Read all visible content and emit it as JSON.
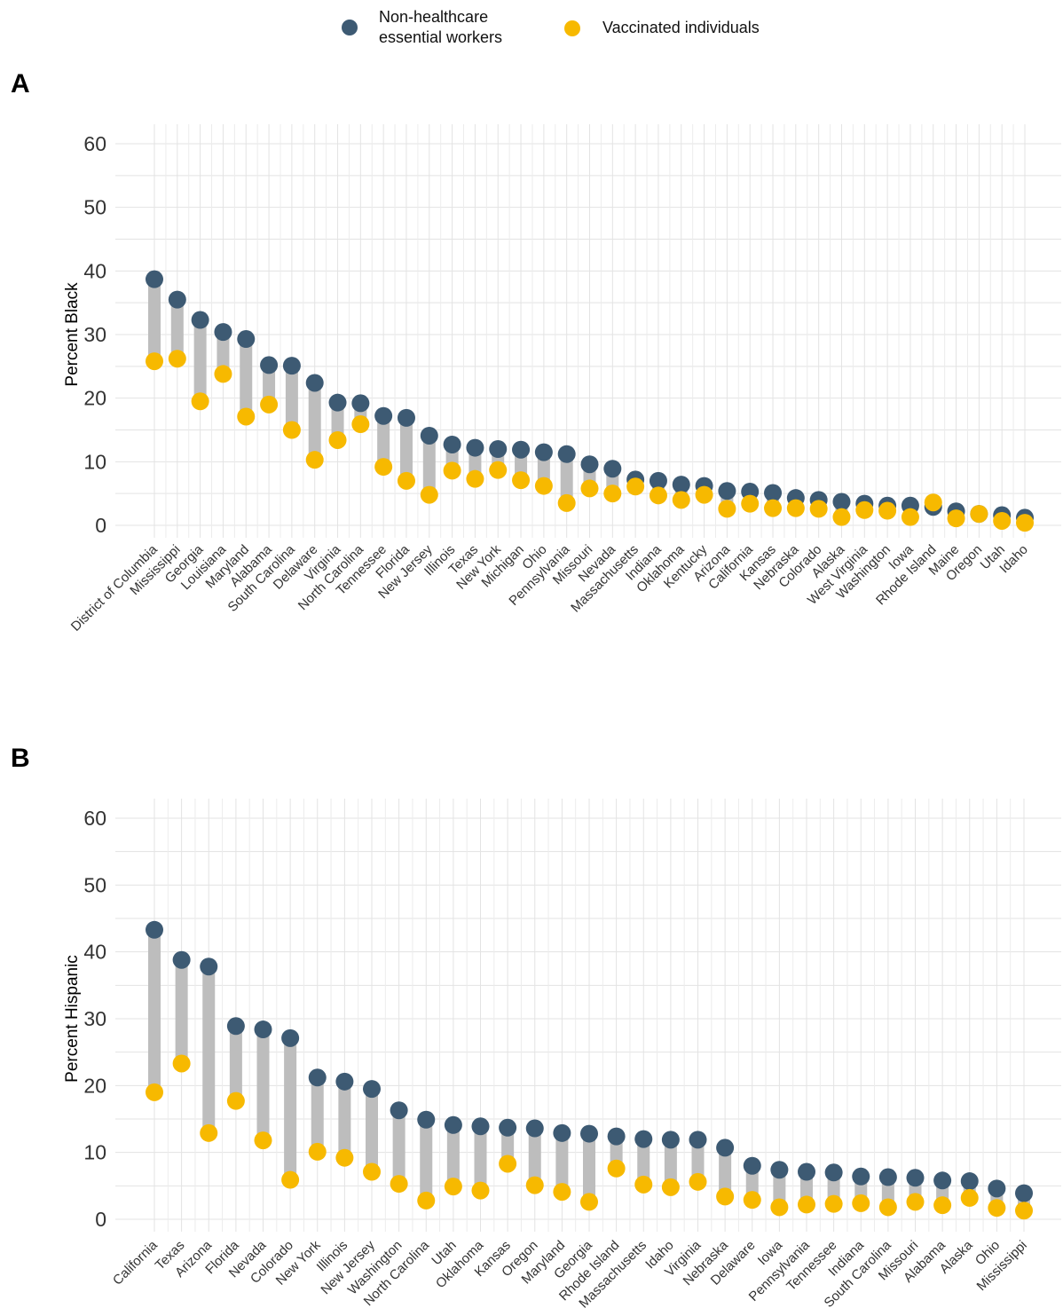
{
  "legend": {
    "items": [
      {
        "label": "Non-healthcare\nessential workers",
        "color": "#3d5a73"
      },
      {
        "label": "Vaccinated individuals",
        "color": "#f7b900"
      }
    ]
  },
  "chart_data": [
    {
      "type": "dumbbell",
      "panel": "A",
      "ylabel": "Percent Black",
      "ylim": [
        0,
        60
      ],
      "yticks": [
        0,
        10,
        20,
        30,
        40,
        50,
        60
      ],
      "grid": true,
      "categories": [
        "District of Columbia",
        "Mississippi",
        "Georgia",
        "Louisiana",
        "Maryland",
        "Alabama",
        "South Carolina",
        "Delaware",
        "Virginia",
        "North Carolina",
        "Tennessee",
        "Florida",
        "New Jersey",
        "Illinois",
        "Texas",
        "New York",
        "Michigan",
        "Ohio",
        "Pennsylvania",
        "Missouri",
        "Nevada",
        "Massachusetts",
        "Indiana",
        "Oklahoma",
        "Kentucky",
        "Arizona",
        "California",
        "Kansas",
        "Nebraska",
        "Colorado",
        "Alaska",
        "West Virginia",
        "Washington",
        "Iowa",
        "Rhode Island",
        "Maine",
        "Oregon",
        "Utah",
        "Idaho"
      ],
      "series": [
        {
          "name": "Non-healthcare essential workers",
          "color": "#3d5a73",
          "values": [
            38.7,
            35.5,
            32.3,
            30.4,
            29.3,
            25.2,
            25.1,
            22.4,
            19.3,
            19.2,
            17.2,
            16.9,
            14.1,
            12.7,
            12.2,
            12.0,
            11.9,
            11.5,
            11.2,
            9.6,
            8.9,
            7.2,
            7.0,
            6.4,
            6.2,
            5.4,
            5.3,
            5.1,
            4.3,
            4.0,
            3.7,
            3.4,
            3.1,
            3.1,
            2.9,
            2.2,
            1.8,
            1.6,
            1.2
          ]
        },
        {
          "name": "Vaccinated individuals",
          "color": "#f7b900",
          "values": [
            25.8,
            26.2,
            19.5,
            23.8,
            17.1,
            19.0,
            15.0,
            10.3,
            13.4,
            15.9,
            9.2,
            7.0,
            4.8,
            8.6,
            7.3,
            8.7,
            7.1,
            6.2,
            3.5,
            5.8,
            5.0,
            6.1,
            4.7,
            4.0,
            4.8,
            2.6,
            3.4,
            2.7,
            2.7,
            2.6,
            1.3,
            2.4,
            2.3,
            1.3,
            3.6,
            1.1,
            1.8,
            0.7,
            0.4
          ]
        }
      ]
    },
    {
      "type": "dumbbell",
      "panel": "B",
      "ylabel": "Percent Hispanic",
      "ylim": [
        0,
        60
      ],
      "yticks": [
        0,
        10,
        20,
        30,
        40,
        50,
        60
      ],
      "grid": true,
      "categories": [
        "California",
        "Texas",
        "Arizona",
        "Florida",
        "Nevada",
        "Colorado",
        "New York",
        "Illinois",
        "New Jersey",
        "Washington",
        "North Carolina",
        "Utah",
        "Oklahoma",
        "Kansas",
        "Oregon",
        "Maryland",
        "Georgia",
        "Rhode Island",
        "Massachusetts",
        "Idaho",
        "Virginia",
        "Nebraska",
        "Delaware",
        "Iowa",
        "Pennsylvania",
        "Tennessee",
        "Indiana",
        "South Carolina",
        "Missouri",
        "Alabama",
        "Alaska",
        "Ohio",
        "Mississippi"
      ],
      "series": [
        {
          "name": "Non-healthcare essential workers",
          "color": "#3d5a73",
          "values": [
            43.3,
            38.8,
            37.8,
            28.9,
            28.4,
            27.1,
            21.2,
            20.6,
            19.5,
            16.3,
            14.9,
            14.1,
            13.9,
            13.7,
            13.6,
            12.9,
            12.8,
            12.4,
            12.0,
            11.9,
            11.9,
            10.7,
            8.0,
            7.4,
            7.1,
            7.0,
            6.4,
            6.3,
            6.2,
            5.8,
            5.7,
            4.6,
            3.9
          ]
        },
        {
          "name": "Vaccinated individuals",
          "color": "#f7b900",
          "values": [
            19.0,
            23.3,
            12.9,
            17.7,
            11.8,
            5.9,
            10.1,
            9.2,
            7.1,
            5.3,
            2.8,
            4.9,
            4.3,
            8.3,
            5.1,
            4.1,
            2.6,
            7.6,
            5.2,
            4.8,
            5.6,
            3.4,
            2.9,
            1.8,
            2.2,
            2.3,
            2.4,
            1.8,
            2.6,
            2.1,
            3.2,
            1.7,
            1.3
          ]
        }
      ]
    }
  ]
}
